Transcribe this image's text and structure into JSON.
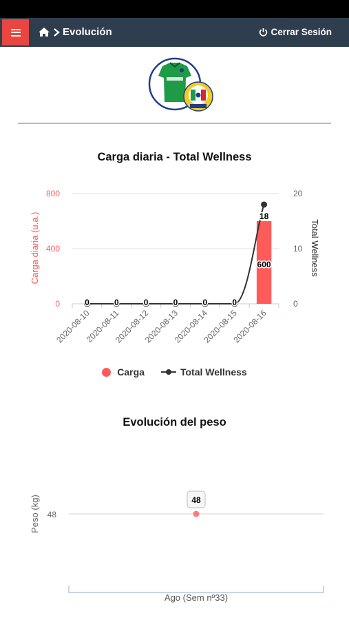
{
  "navbar": {
    "menu_icon": "hamburger-icon",
    "home_icon": "home-icon",
    "breadcrumb": "Evolución",
    "logout_label": "Cerrar Sesión",
    "logout_icon": "power-icon"
  },
  "header": {
    "logo_icon": "club-jersey-crest-logo",
    "accent_color": "#e8463f",
    "bar_color": "#2f3e4e"
  },
  "chart_data": [
    {
      "type": "bar+line",
      "title": "Carga diaria - Total Wellness",
      "categories": [
        "2020-08-10",
        "2020-08-11",
        "2020-08-12",
        "2020-08-13",
        "2020-08-14",
        "2020-08-15",
        "2020-08-16"
      ],
      "series": [
        {
          "name": "Carga",
          "type": "bar",
          "axis": "left",
          "color": "#ff5b5b",
          "values": [
            0,
            0,
            0,
            0,
            0,
            0,
            600
          ],
          "labels": [
            "0",
            "0",
            "0",
            "0",
            "0",
            "0",
            "600"
          ]
        },
        {
          "name": "Total Wellness",
          "type": "line",
          "axis": "right",
          "color": "#333333",
          "values": [
            0,
            0,
            0,
            0,
            0,
            0,
            18
          ],
          "labels": [
            "0",
            "0",
            "0",
            "0",
            "0",
            "0",
            "18"
          ]
        }
      ],
      "ylabel": "Carga diaria (u.a.)",
      "y2label": "Total Wellness",
      "ylim": [
        0,
        800
      ],
      "y2lim": [
        0,
        20
      ],
      "yticks": [
        "0",
        "400",
        "800"
      ],
      "y2ticks": [
        "0",
        "10",
        "20"
      ],
      "legend": [
        {
          "label": "Carga"
        },
        {
          "label": "Total Wellness"
        }
      ],
      "legend_position": "bottom",
      "grid": true
    },
    {
      "type": "scatter",
      "title": "Evolución del peso",
      "ylabel": "Peso (kg)",
      "xlabel": "Ago (Sem nº33)",
      "yticks": [
        "48"
      ],
      "points": [
        {
          "y": 48,
          "label": "48"
        }
      ],
      "color": "#ff7a7a",
      "grid": true
    }
  ]
}
